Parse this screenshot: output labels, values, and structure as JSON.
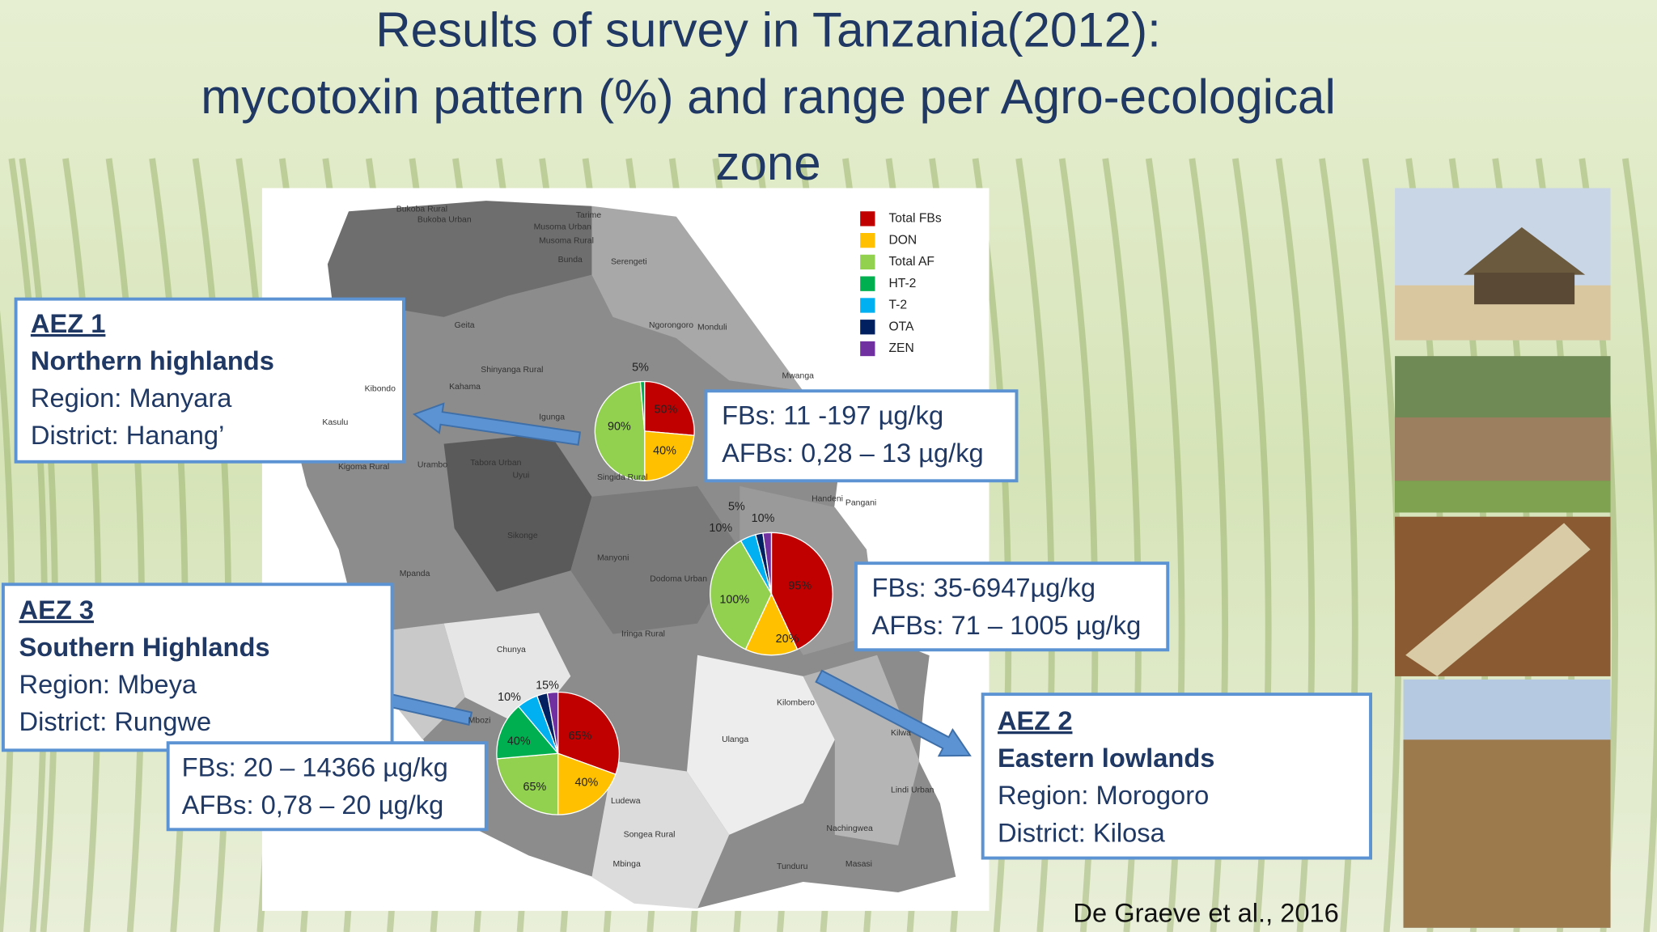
{
  "title": [
    "Results of survey  in Tanzania(2012):",
    "mycotoxin pattern (%) and range per Agro-ecological",
    "zone"
  ],
  "legend": [
    {
      "name": "Total FBs",
      "color": "#c00000"
    },
    {
      "name": "DON",
      "color": "#ffc000"
    },
    {
      "name": "Total AF",
      "color": "#92d050"
    },
    {
      "name": "HT-2",
      "color": "#00b050"
    },
    {
      "name": "T-2",
      "color": "#00b0f0"
    },
    {
      "name": "OTA",
      "color": "#002060"
    },
    {
      "name": "ZEN",
      "color": "#7030a0"
    }
  ],
  "zones": [
    {
      "heading": "AEZ 1",
      "name": "Northern highlands",
      "region": "Region: Manyara",
      "district": "District: Hanang’",
      "fbs": "FBs: 11 -197 µg/kg",
      "afbs": "AFBs: 0,28 – 13 µg/kg",
      "pie_labels": [
        "5%",
        "50%",
        "40%",
        "90%"
      ]
    },
    {
      "heading": "AEZ 2",
      "name": "Eastern lowlands",
      "region": "Region: Morogoro",
      "district": "District: Kilosa",
      "fbs": "FBs: 35-6947µg/kg",
      "afbs": "AFBs: 71 – 1005 µg/kg",
      "pie_labels": [
        "5%",
        "10%",
        "10%",
        "95%",
        "100%",
        "20%"
      ]
    },
    {
      "heading": "AEZ 3",
      "name": "Southern Highlands",
      "region": "Region: Mbeya",
      "district": "District: Rungwe",
      "fbs": "FBs: 20 – 14366 µg/kg",
      "afbs": "AFBs: 0,78 – 20 µg/kg",
      "pie_labels": [
        "15%",
        "10%",
        "65%",
        "40%",
        "40%",
        "65%"
      ]
    }
  ],
  "map_labels": [
    "Bukoba Rural",
    "Bukoba Urban",
    "Tarime",
    "Musoma Urban",
    "Musoma Rural",
    "Bunda",
    "Serengeti",
    "Ngorongoro",
    "Monduli",
    "Geita",
    "Kahama",
    "Igunga",
    "Shinyanga Rural",
    "Kibondo",
    "Kasulu",
    "Kigoma Rural",
    "Urambo",
    "Tabora Urban",
    "Uyui",
    "Singida Rural",
    "Sikonge",
    "Manyoni",
    "Dodoma Urban",
    "Mpanda",
    "Chunya",
    "Iringa Rural",
    "Mbozi",
    "Ludewa",
    "Songea Rural",
    "Tunduru",
    "Masasi",
    "Lindi Urban",
    "Nachingwea",
    "Kilombero",
    "Ulanga",
    "Handeni",
    "Pangani",
    "Mwanga",
    "Mbinga",
    "Kilwa"
  ],
  "citation": "De Graeve et al., 2016"
}
